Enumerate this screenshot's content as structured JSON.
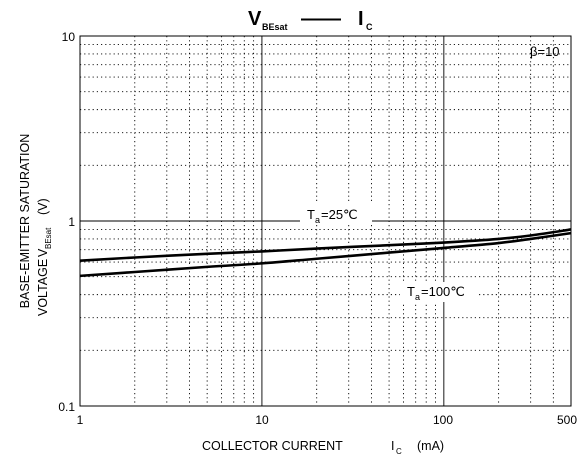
{
  "chart_data": {
    "type": "line",
    "title": {
      "main": "V",
      "main_sub": "BEsat",
      "dash": "——",
      "right": "I",
      "right_sub": "C"
    },
    "x_axis": {
      "scale": "log",
      "range": [
        1,
        500
      ],
      "unit": "mA",
      "tick_labels": [
        "1",
        "10",
        "100",
        "500"
      ],
      "label_main": "COLLECTOR CURRENT",
      "label_symbol": "I",
      "label_symbol_sub": "C",
      "label_unit": "(mA)"
    },
    "y_axis": {
      "scale": "log",
      "range": [
        0.1,
        10
      ],
      "unit": "V",
      "tick_labels": [
        "10",
        "1",
        "0.1"
      ],
      "label_line1": "BASE-EMITTER SATURATION",
      "label_line2_text": "VOLTAGE",
      "label_line2_symbol": "V",
      "label_line2_symbol_sub": "BEsat",
      "label_line2_unit": "(V)"
    },
    "grid": true,
    "annotation": "β=10",
    "series": [
      {
        "name_main": "T",
        "name_sub": "a",
        "name_rest": "=25℃",
        "x": [
          1,
          2,
          5,
          10,
          20,
          50,
          100,
          200,
          300,
          500
        ],
        "y": [
          0.61,
          0.635,
          0.665,
          0.685,
          0.71,
          0.74,
          0.765,
          0.8,
          0.835,
          0.9
        ]
      },
      {
        "name_main": "T",
        "name_sub": "a",
        "name_rest": "=100℃",
        "x": [
          1,
          2,
          5,
          10,
          20,
          50,
          100,
          200,
          300,
          500
        ],
        "y": [
          0.505,
          0.53,
          0.565,
          0.59,
          0.625,
          0.675,
          0.715,
          0.76,
          0.8,
          0.86
        ]
      }
    ]
  }
}
